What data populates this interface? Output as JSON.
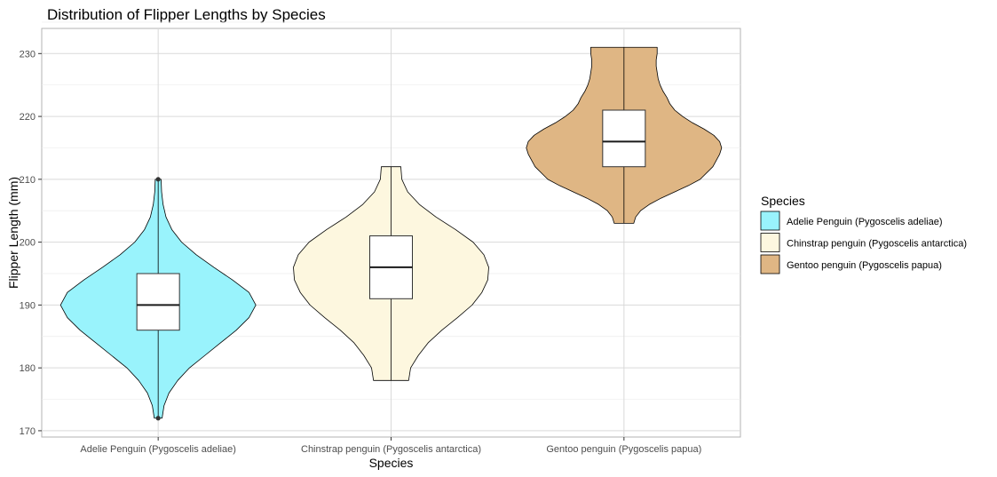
{
  "chart_data": {
    "type": "violin",
    "title": "Distribution of Flipper Lengths by Species",
    "xlabel": "Species",
    "ylabel": "Flipper Length (mm)",
    "ylim": [
      169,
      234
    ],
    "yticks": [
      170,
      180,
      190,
      200,
      210,
      220,
      230
    ],
    "grid": true,
    "legend": {
      "title": "Species",
      "position": "right"
    },
    "series": [
      {
        "name": "Adelie Penguin (Pygoscelis adeliae)",
        "color": "#99F3FC",
        "min": 172,
        "q1": 186,
        "median": 190,
        "q3": 195,
        "max": 210,
        "outliers": [
          172,
          210
        ],
        "density": [
          [
            172,
            0.04
          ],
          [
            174,
            0.06
          ],
          [
            176,
            0.11
          ],
          [
            178,
            0.2
          ],
          [
            180,
            0.32
          ],
          [
            182,
            0.48
          ],
          [
            184,
            0.64
          ],
          [
            186,
            0.8
          ],
          [
            188,
            0.93
          ],
          [
            190,
            1.0
          ],
          [
            192,
            0.93
          ],
          [
            194,
            0.76
          ],
          [
            196,
            0.57
          ],
          [
            198,
            0.39
          ],
          [
            200,
            0.24
          ],
          [
            202,
            0.14
          ],
          [
            204,
            0.08
          ],
          [
            206,
            0.05
          ],
          [
            208,
            0.035
          ],
          [
            210,
            0.03
          ]
        ]
      },
      {
        "name": "Chinstrap penguin (Pygoscelis antarctica)",
        "color": "#FDF7DF",
        "min": 178,
        "q1": 191,
        "median": 196,
        "q3": 201,
        "max": 212,
        "outliers": [],
        "density": [
          [
            178,
            0.18
          ],
          [
            180,
            0.2
          ],
          [
            182,
            0.28
          ],
          [
            184,
            0.38
          ],
          [
            186,
            0.52
          ],
          [
            188,
            0.68
          ],
          [
            190,
            0.83
          ],
          [
            192,
            0.93
          ],
          [
            194,
            0.99
          ],
          [
            196,
            1.0
          ],
          [
            198,
            0.95
          ],
          [
            200,
            0.84
          ],
          [
            202,
            0.66
          ],
          [
            204,
            0.46
          ],
          [
            206,
            0.29
          ],
          [
            208,
            0.17
          ],
          [
            210,
            0.11
          ],
          [
            212,
            0.1
          ]
        ]
      },
      {
        "name": "Gentoo penguin (Pygoscelis papua)",
        "color": "#DFB684",
        "min": 203,
        "q1": 212,
        "median": 216,
        "q3": 221,
        "max": 231,
        "outliers": [],
        "density": [
          [
            203,
            0.1
          ],
          [
            204,
            0.12
          ],
          [
            205,
            0.17
          ],
          [
            206,
            0.26
          ],
          [
            207,
            0.38
          ],
          [
            208,
            0.52
          ],
          [
            209,
            0.66
          ],
          [
            210,
            0.78
          ],
          [
            212,
            0.91
          ],
          [
            214,
            0.98
          ],
          [
            215,
            1.0
          ],
          [
            216,
            0.98
          ],
          [
            217,
            0.92
          ],
          [
            218,
            0.82
          ],
          [
            219,
            0.7
          ],
          [
            220,
            0.6
          ],
          [
            221,
            0.52
          ],
          [
            222,
            0.47
          ],
          [
            223,
            0.44
          ],
          [
            224,
            0.4
          ],
          [
            225,
            0.37
          ],
          [
            226,
            0.35
          ],
          [
            227,
            0.34
          ],
          [
            228,
            0.33
          ],
          [
            229,
            0.33
          ],
          [
            230,
            0.34
          ],
          [
            231,
            0.34
          ]
        ]
      }
    ]
  }
}
